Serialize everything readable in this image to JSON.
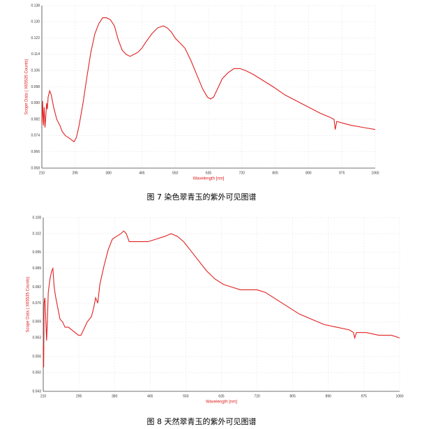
{
  "chart_data": [
    {
      "type": "line",
      "caption": "图 7 染色翠青玉的紫外可见图谱",
      "x_label": "Wavelength [nm]",
      "y_label": "Scope Data ( X65535 Counts)",
      "xlim": [
        210,
        1060
      ],
      "xticks": [
        210,
        295,
        380,
        465,
        550,
        635,
        720,
        805,
        890,
        975,
        1060
      ],
      "ylim": [
        0.058,
        0.138
      ],
      "yticks": [
        0.058,
        0.066,
        0.074,
        0.082,
        {
          "value": 0.09,
          "label": "0.090"
        },
        0.098,
        0.106,
        0.114,
        0.122,
        {
          "value": 0.13,
          "label": "0.130"
        },
        0.138
      ],
      "grid": true,
      "series": [
        {
          "color": "#e02020",
          "x": [
            210,
            212,
            214,
            216,
            218,
            220,
            222,
            224,
            226,
            230,
            234,
            240,
            248,
            256,
            262,
            270,
            278,
            285,
            292,
            298,
            305,
            315,
            325,
            335,
            345,
            355,
            365,
            375,
            385,
            395,
            405,
            415,
            425,
            435,
            445,
            455,
            465,
            475,
            490,
            505,
            520,
            530,
            540,
            550,
            560,
            575,
            590,
            605,
            620,
            632,
            640,
            648,
            658,
            670,
            685,
            700,
            715,
            730,
            750,
            775,
            800,
            830,
            860,
            890,
            920,
            945,
            955,
            958,
            962,
            980,
            1000,
            1030,
            1060
          ],
          "values": [
            0.08,
            0.091,
            0.079,
            0.088,
            0.078,
            0.083,
            0.09,
            0.087,
            0.093,
            0.096,
            0.094,
            0.088,
            0.082,
            0.079,
            0.076,
            0.074,
            0.073,
            0.072,
            0.071,
            0.073,
            0.079,
            0.09,
            0.103,
            0.115,
            0.124,
            0.129,
            0.132,
            0.132,
            0.131,
            0.128,
            0.121,
            0.116,
            0.114,
            0.113,
            0.114,
            0.115,
            0.117,
            0.12,
            0.124,
            0.127,
            0.128,
            0.127,
            0.125,
            0.122,
            0.12,
            0.117,
            0.111,
            0.104,
            0.097,
            0.093,
            0.092,
            0.093,
            0.097,
            0.102,
            0.105,
            0.107,
            0.107,
            0.106,
            0.104,
            0.101,
            0.098,
            0.094,
            0.091,
            0.088,
            0.085,
            0.083,
            0.082,
            0.077,
            0.081,
            0.08,
            0.079,
            0.078,
            0.077
          ]
        }
      ]
    },
    {
      "type": "line",
      "caption": "图 8 天然翠青玉的紫外可见图谱",
      "x_label": "Wavelength [nm]",
      "y_label": "Scope Data ( X65535 Counts)",
      "xlim": [
        210,
        1060
      ],
      "xticks": [
        210,
        295,
        380,
        465,
        550,
        635,
        720,
        805,
        890,
        975,
        1060
      ],
      "ylim": [
        0.043,
        0.108
      ],
      "yticks": [
        0.043,
        {
          "value": 0.05,
          "label": "0.050"
        },
        0.056,
        0.063,
        0.069,
        0.076,
        0.082,
        0.089,
        0.095,
        0.102,
        0.108
      ],
      "grid": true,
      "series": [
        {
          "color": "#e02020",
          "x": [
            210,
            211,
            212,
            214,
            216,
            218,
            220,
            222,
            226,
            230,
            233,
            236,
            240,
            245,
            250,
            256,
            262,
            270,
            278,
            286,
            294,
            300,
            306,
            315,
            325,
            330,
            335,
            340,
            345,
            355,
            365,
            375,
            385,
            395,
            402,
            408,
            415,
            425,
            440,
            460,
            480,
            500,
            515,
            530,
            545,
            560,
            580,
            600,
            620,
            640,
            660,
            680,
            700,
            720,
            740,
            760,
            790,
            820,
            850,
            880,
            910,
            940,
            950,
            953,
            957,
            980,
            1010,
            1040,
            1060
          ],
          "values": [
            0.06,
            0.052,
            0.076,
            0.078,
            0.07,
            0.062,
            0.07,
            0.08,
            0.085,
            0.088,
            0.089,
            0.082,
            0.078,
            0.074,
            0.07,
            0.069,
            0.067,
            0.067,
            0.066,
            0.065,
            0.064,
            0.064,
            0.066,
            0.069,
            0.071,
            0.074,
            0.078,
            0.076,
            0.083,
            0.09,
            0.096,
            0.1,
            0.101,
            0.102,
            0.103,
            0.102,
            0.099,
            0.099,
            0.099,
            0.099,
            0.1,
            0.101,
            0.102,
            0.101,
            0.099,
            0.096,
            0.092,
            0.088,
            0.085,
            0.083,
            0.082,
            0.081,
            0.081,
            0.081,
            0.08,
            0.078,
            0.075,
            0.072,
            0.07,
            0.068,
            0.067,
            0.066,
            0.065,
            0.063,
            0.065,
            0.065,
            0.064,
            0.064,
            0.063
          ]
        }
      ]
    }
  ]
}
